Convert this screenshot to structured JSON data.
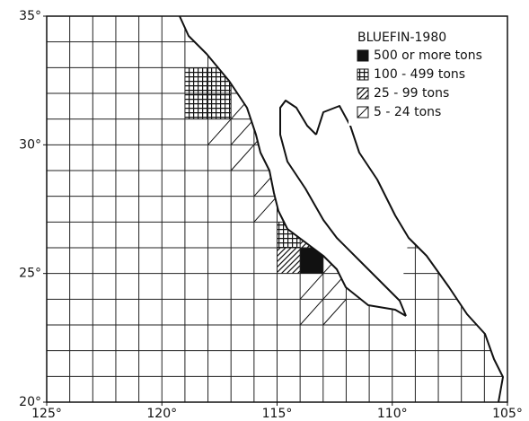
{
  "map": {
    "type": "grid-map",
    "title": "BLUEFIN-1980",
    "xlim": [
      125,
      105
    ],
    "ylim": [
      20,
      35
    ],
    "xticks": [
      {
        "value": 125,
        "label": "125°"
      },
      {
        "value": 120,
        "label": "120°"
      },
      {
        "value": 115,
        "label": "115°"
      },
      {
        "value": 110,
        "label": "110°"
      },
      {
        "value": 105,
        "label": "105°"
      }
    ],
    "yticks": [
      {
        "value": 35,
        "label": "35°"
      },
      {
        "value": 30,
        "label": "30°"
      },
      {
        "value": 25,
        "label": "25°"
      },
      {
        "value": 20,
        "label": "20°"
      }
    ],
    "legend": [
      "500 or more tons",
      "100 - 499 tons",
      "25 - 99 tons",
      "5 - 24 tons"
    ],
    "cells": [
      {
        "lon": 119,
        "lat": 33,
        "class": 1
      },
      {
        "lon": 118,
        "lat": 33,
        "class": 1
      },
      {
        "lon": 119,
        "lat": 32,
        "class": 1
      },
      {
        "lon": 118,
        "lat": 32,
        "class": 1
      },
      {
        "lon": 117,
        "lat": 32,
        "class": 3
      },
      {
        "lon": 118,
        "lat": 31,
        "class": 3
      },
      {
        "lon": 117,
        "lat": 31,
        "class": 3
      },
      {
        "lon": 116,
        "lat": 31,
        "class": 3
      },
      {
        "lon": 117,
        "lat": 30,
        "class": 3
      },
      {
        "lon": 116,
        "lat": 29,
        "class": 3
      },
      {
        "lon": 116,
        "lat": 28,
        "class": 3
      },
      {
        "lon": 115,
        "lat": 27,
        "class": 1
      },
      {
        "lon": 114,
        "lat": 27,
        "class": 2
      },
      {
        "lon": 115,
        "lat": 26,
        "class": 2
      },
      {
        "lon": 114,
        "lat": 26,
        "class": 0
      },
      {
        "lon": 113,
        "lat": 26,
        "class": 3
      },
      {
        "lon": 113,
        "lat": 25,
        "class": 3
      },
      {
        "lon": 114,
        "lat": 25,
        "class": 3
      },
      {
        "lon": 114,
        "lat": 24,
        "class": 3
      },
      {
        "lon": 113,
        "lat": 24,
        "class": 3
      }
    ]
  }
}
